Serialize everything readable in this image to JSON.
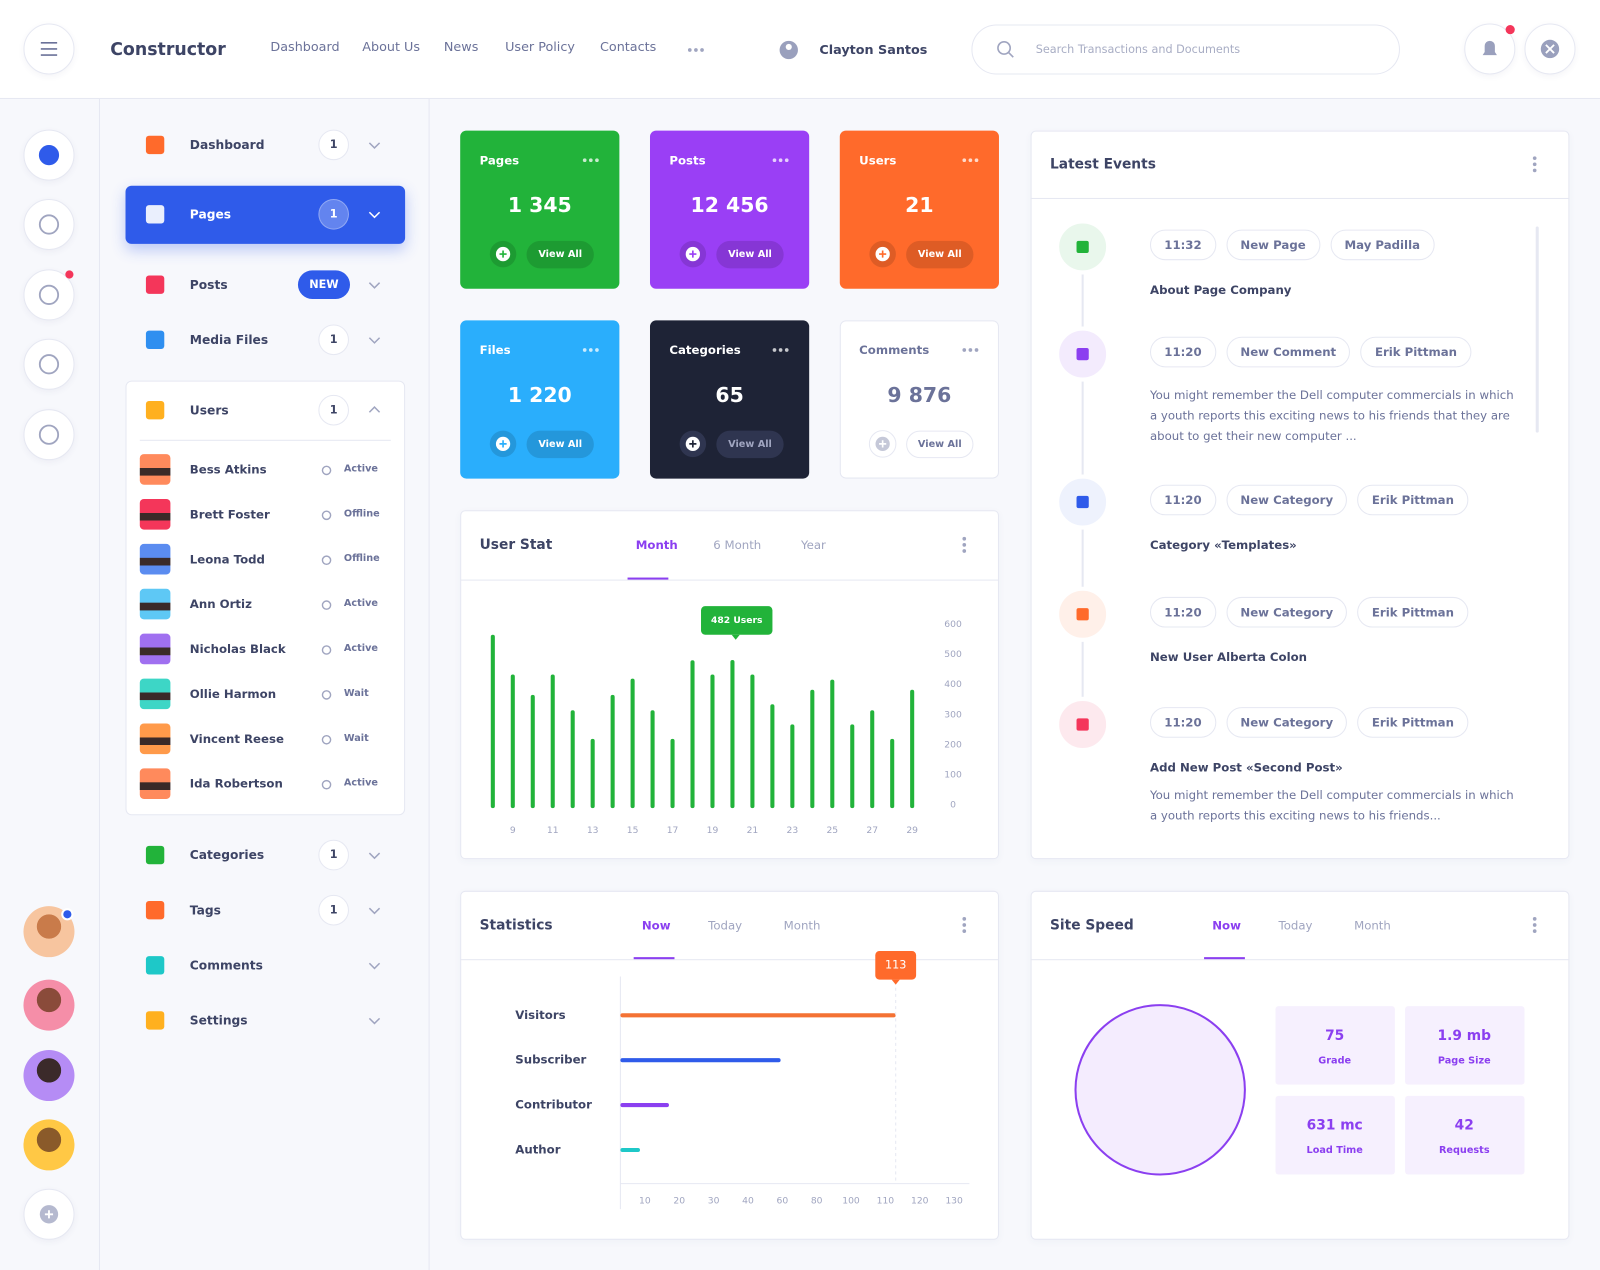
{
  "header": {
    "brand": "Constructor",
    "nav": [
      "Dashboard",
      "About Us",
      "News",
      "User Policy",
      "Contacts"
    ],
    "user": "Clayton Santos",
    "search_placeholder": "Search Transactions and Documents"
  },
  "menu": [
    {
      "label": "Dashboard",
      "badge": "1"
    },
    {
      "label": "Pages",
      "badge": "1"
    },
    {
      "label": "Posts",
      "badge": "NEW"
    },
    {
      "label": "Media Files",
      "badge": "1"
    },
    {
      "label": "Users",
      "badge": "1"
    },
    {
      "label": "Categories",
      "badge": "1"
    },
    {
      "label": "Tags",
      "badge": "1"
    },
    {
      "label": "Comments"
    },
    {
      "label": "Settings"
    }
  ],
  "users": [
    {
      "name": "Bess Atkins",
      "status": "Active"
    },
    {
      "name": "Brett Foster",
      "status": "Offline"
    },
    {
      "name": "Leona Todd",
      "status": "Offline"
    },
    {
      "name": "Ann Ortiz",
      "status": "Active"
    },
    {
      "name": "Nicholas Black",
      "status": "Active"
    },
    {
      "name": "Ollie Harmon",
      "status": "Wait"
    },
    {
      "name": "Vincent Reese",
      "status": "Wait"
    },
    {
      "name": "Ida Robertson",
      "status": "Active"
    }
  ],
  "cards": [
    {
      "title": "Pages",
      "value": "1 345",
      "action": "View All"
    },
    {
      "title": "Posts",
      "value": "12 456",
      "action": "View All"
    },
    {
      "title": "Users",
      "value": "21",
      "action": "View All"
    },
    {
      "title": "Files",
      "value": "1 220",
      "action": "View All"
    },
    {
      "title": "Categories",
      "value": "65",
      "action": "View All"
    },
    {
      "title": "Comments",
      "value": "9 876",
      "action": "View All"
    }
  ],
  "user_stat": {
    "title": "User Stat",
    "tabs": [
      "Month",
      "6 Month",
      "Year"
    ]
  },
  "statistics": {
    "title": "Statistics",
    "tabs": [
      "Now",
      "Today",
      "Month"
    ]
  },
  "latest_events": {
    "title": "Latest Events",
    "events": [
      {
        "time": "11:32",
        "type": "New Page",
        "person": "May Padilla",
        "text": "About Page Company"
      },
      {
        "time": "11:20",
        "type": "New Comment",
        "person": "Erik Pittman",
        "description": "You might remember the Dell computer commercials in which a youth reports this exciting news to his friends that they are about to get their new computer ..."
      },
      {
        "time": "11:20",
        "type": "New Category",
        "person": "Erik Pittman",
        "text": "Category «Templates»"
      },
      {
        "time": "11:20",
        "type": "New Category",
        "person": "Erik Pittman",
        "text": "New User Alberta Colon"
      },
      {
        "time": "11:20",
        "type": "New Category",
        "person": "Erik Pittman",
        "text": "Add New Post «Second Post»",
        "description": "You might remember the Dell computer commercials in which a youth reports this exciting news to his friends..."
      }
    ]
  },
  "site_speed": {
    "title": "Site Speed",
    "tabs": [
      "Now",
      "Today",
      "Month"
    ],
    "value": "631",
    "unit": "mc",
    "metrics": [
      {
        "value": "75",
        "label": "Grade"
      },
      {
        "value": "1.9 mb",
        "label": "Page Size"
      },
      {
        "value": "631 mc",
        "label": "Load Time"
      },
      {
        "value": "42",
        "label": "Requests"
      }
    ]
  },
  "chart_data": [
    {
      "type": "bar",
      "x": [
        8,
        9,
        10,
        11,
        12,
        13,
        14,
        15,
        16,
        17,
        18,
        19,
        20,
        21,
        22,
        23,
        24,
        25,
        26,
        27,
        28,
        29
      ],
      "values": [
        566,
        434,
        366,
        434,
        315,
        220,
        366,
        420,
        315,
        220,
        481,
        434,
        482,
        434,
        335,
        268,
        383,
        417,
        268,
        315,
        220,
        383
      ],
      "color": "#22b33a",
      "xlim": [
        7,
        30
      ],
      "xticks": [
        9,
        11,
        13,
        15,
        17,
        19,
        21,
        23,
        25,
        27,
        29
      ],
      "ylim": [
        0,
        600
      ],
      "yticks": [
        0,
        100,
        200,
        300,
        400,
        500,
        600
      ],
      "tooltip": "482 Users"
    },
    {
      "type": "hbar",
      "categories": [
        "Visitors",
        "Subscriber",
        "Contributor",
        "Author"
      ],
      "values": [
        113,
        59,
        17,
        8
      ],
      "colors": [
        "#f47234",
        "#2f5bea",
        "#8b3ff0",
        "#1ec8c8"
      ],
      "xlim": [
        0,
        130
      ],
      "xticks": [
        10,
        20,
        30,
        40,
        60,
        80,
        100,
        110,
        120,
        130
      ]
    }
  ]
}
